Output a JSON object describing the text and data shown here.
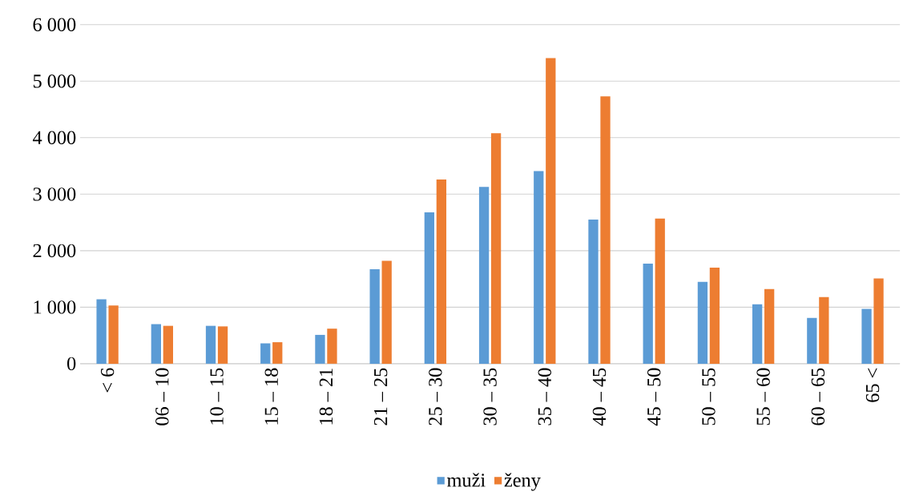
{
  "chart_data": {
    "type": "bar",
    "categories": [
      "< 6",
      "06 – 10",
      "10 – 15",
      "15 – 18",
      "18 – 21",
      "21 – 25",
      "25 – 30",
      "30 – 35",
      "35 – 40",
      "40 – 45",
      "45 – 50",
      "50 – 55",
      "55 – 60",
      "60 – 65",
      "65 <"
    ],
    "series": [
      {
        "name": "muži",
        "color": "#5b9bd5",
        "values": [
          1140,
          700,
          670,
          360,
          510,
          1670,
          2680,
          3130,
          3410,
          2550,
          1770,
          1450,
          1050,
          810,
          970
        ]
      },
      {
        "name": "ženy",
        "color": "#ed7d31",
        "values": [
          1030,
          670,
          660,
          380,
          620,
          1820,
          3260,
          4080,
          5410,
          4730,
          2570,
          1700,
          1320,
          1180,
          1510
        ]
      }
    ],
    "ylim": [
      0,
      6000
    ],
    "yticks": [
      0,
      {
        "value": 1000,
        "label": "1 000"
      },
      {
        "value": 2000,
        "label": "2 000"
      },
      {
        "value": 3000,
        "label": "3 000"
      },
      {
        "value": 4000,
        "label": "4 000"
      },
      {
        "value": 5000,
        "label": "5 000"
      },
      {
        "value": 6000,
        "label": "6 000"
      }
    ],
    "grid": "y",
    "legend": "bottom"
  }
}
